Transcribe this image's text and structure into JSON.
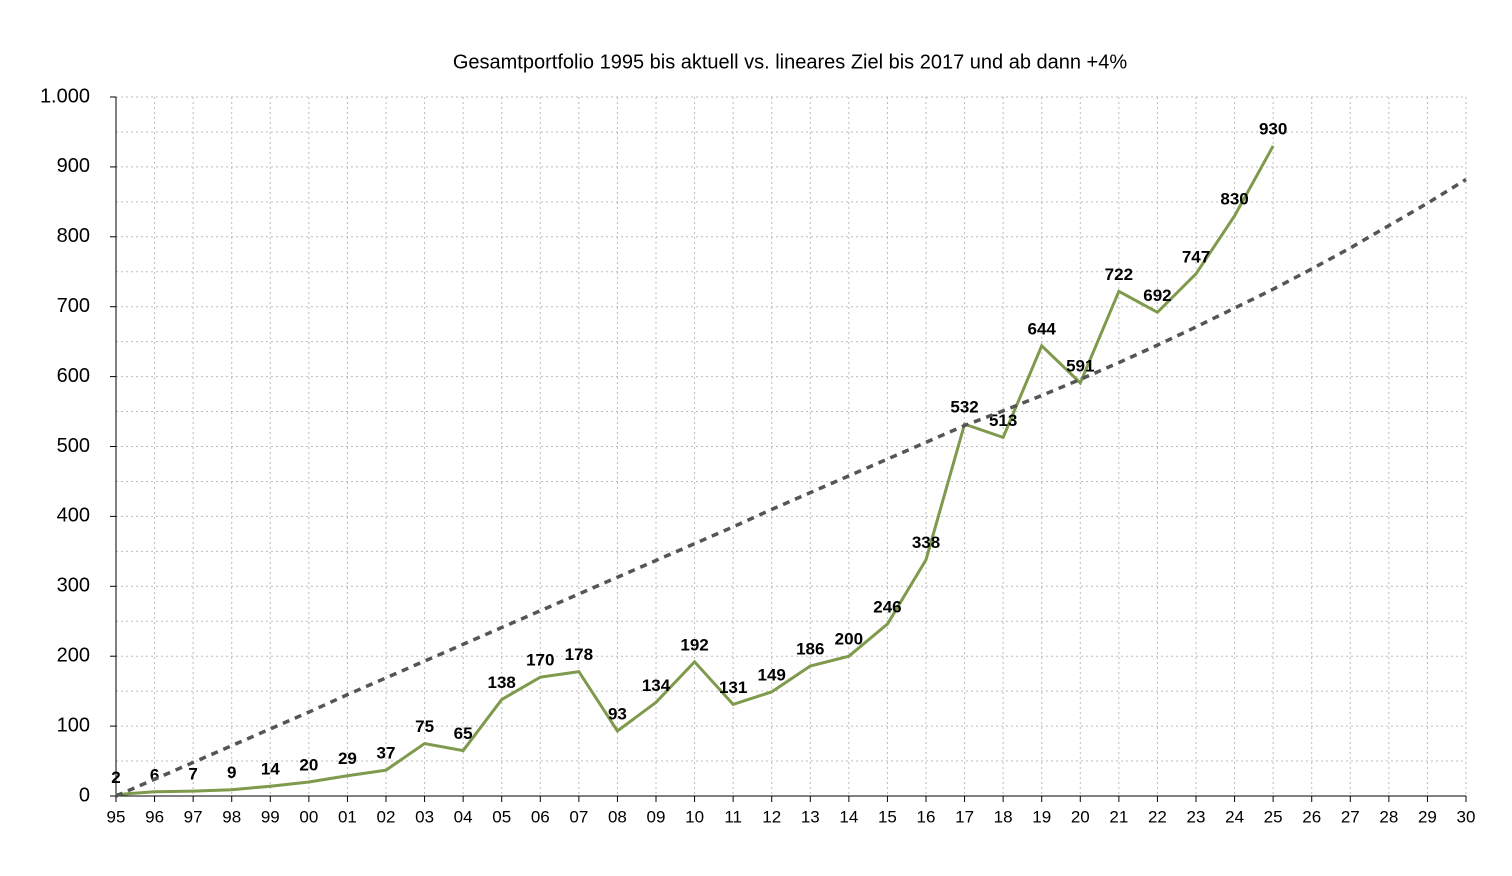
{
  "chart_data": {
    "type": "line",
    "title": "Gesamtportfolio 1995 bis aktuell vs. lineares Ziel bis 2017 und ab dann +4%",
    "categories": [
      "95",
      "96",
      "97",
      "98",
      "99",
      "00",
      "01",
      "02",
      "03",
      "04",
      "05",
      "06",
      "07",
      "08",
      "09",
      "10",
      "11",
      "12",
      "13",
      "14",
      "15",
      "16",
      "17",
      "18",
      "19",
      "20",
      "21",
      "22",
      "23",
      "24",
      "25",
      "26",
      "27",
      "28",
      "29",
      "30"
    ],
    "series": [
      {
        "color": "#7f9a4c",
        "style": "solid",
        "data_labels": true,
        "values": [
          2,
          6,
          7,
          9,
          14,
          20,
          29,
          37,
          75,
          65,
          138,
          170,
          178,
          93,
          134,
          192,
          131,
          149,
          186,
          200,
          246,
          338,
          532,
          513,
          644,
          591,
          722,
          692,
          747,
          830,
          930,
          null,
          null,
          null,
          null,
          null
        ]
      },
      {
        "color": "#555555",
        "style": "dashed",
        "data_labels": false,
        "values": [
          0,
          24,
          48,
          72,
          96,
          120,
          145,
          169,
          193,
          217,
          241,
          265,
          289,
          313,
          337,
          361,
          385,
          410,
          434,
          458,
          482,
          506,
          530,
          551,
          573,
          596,
          620,
          645,
          671,
          698,
          725,
          754,
          784,
          816,
          848,
          882
        ]
      }
    ],
    "ylim": [
      0,
      1000
    ],
    "yticks": [
      0,
      100,
      200,
      300,
      400,
      500,
      600,
      700,
      800,
      900,
      {
        "value": 1000,
        "label": "1.000"
      }
    ],
    "y_minor_ticks": [
      50,
      150,
      250,
      350,
      450,
      550,
      650,
      750,
      850,
      950
    ],
    "grid": true
  }
}
